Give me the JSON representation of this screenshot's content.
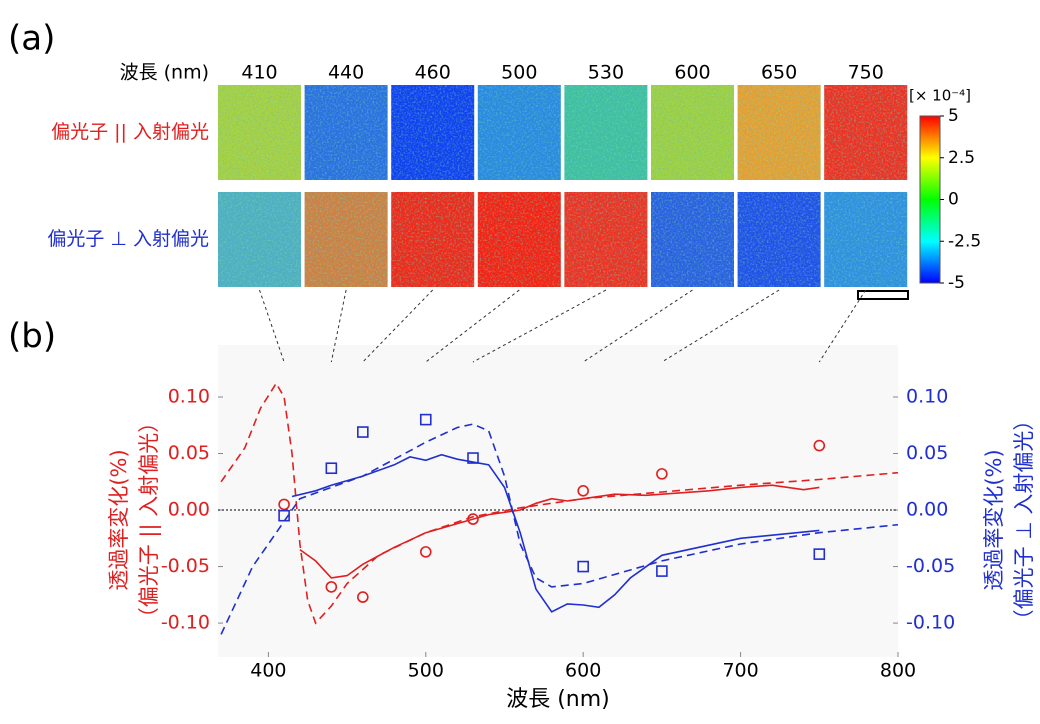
{
  "panel_labels": [
    "(a)",
    "(b)"
  ],
  "panel_a": {
    "wavelength_label": "波長 (nm)",
    "wavelengths": [
      410,
      440,
      460,
      500,
      530,
      600,
      650,
      750
    ],
    "rows": [
      {
        "label": "偏光子 || 入射偏光",
        "color": "#e02020",
        "tile_colors": [
          "#a8d040",
          "#2a70e0",
          "#1040f0",
          "#2a8ae0",
          "#40c0a0",
          "#a0d040",
          "#e8a030",
          "#f03020"
        ]
      },
      {
        "label": "偏光子 ⊥ 入射偏光",
        "color": "#2030d0",
        "tile_colors": [
          "#50b0c0",
          "#d08040",
          "#f02818",
          "#f82010",
          "#f03020",
          "#2a60e0",
          "#2050e8",
          "#3090e0"
        ]
      }
    ],
    "colorbar": {
      "unit": "[× 10⁻⁴]",
      "lim": [
        -5,
        5
      ],
      "ticks": [
        5,
        2.5,
        0,
        -2.5,
        -5
      ],
      "colormap": [
        "#0000ff",
        "#00ffff",
        "#00ff00",
        "#ffff00",
        "#ff0000"
      ]
    }
  },
  "chart_data": {
    "type": "line",
    "xlabel": "波長 (nm)",
    "ylabel": [
      "透過率変化(%)",
      "（偏光子 || 入射偏光）"
    ],
    "y2label": [
      "透過率変化(%)",
      "（偏光子 ⊥ 入射偏光）"
    ],
    "ylabel_color": "#e02020",
    "y2label_color": "#2030d0",
    "xlim": [
      368,
      800
    ],
    "xticks": [
      400,
      500,
      600,
      700,
      800
    ],
    "ylim": [
      -0.13,
      0.146
    ],
    "yticks": [
      {
        "value": 0.1,
        "label": "0.10"
      },
      {
        "value": 0.05,
        "label": "0.05"
      },
      {
        "value": 0,
        "label": "0.00"
      },
      {
        "value": -0.05,
        "label": "-0.05"
      },
      {
        "value": -0.1,
        "label": "-0.10"
      }
    ],
    "y2lim": [
      -0.13,
      0.146
    ],
    "y2ticks": [
      {
        "value": 0.1,
        "label": "0.10"
      },
      {
        "value": 0.05,
        "label": "0.05"
      },
      {
        "value": 0,
        "label": "0.00"
      },
      {
        "value": -0.05,
        "label": "-0.05"
      },
      {
        "value": -0.1,
        "label": "-0.10"
      }
    ],
    "reference_line": 0,
    "series": [
      {
        "color": "#e02020",
        "line_style": "dashed",
        "axis": "y",
        "x": [
          370,
          385,
          395,
          405,
          410,
          415,
          420,
          425,
          430,
          440,
          450,
          470,
          500,
          530,
          560,
          600,
          650,
          700,
          750,
          800
        ],
        "values": [
          0.025,
          0.055,
          0.09,
          0.112,
          0.1,
          0.05,
          -0.03,
          -0.08,
          -0.1,
          -0.085,
          -0.065,
          -0.04,
          -0.02,
          -0.006,
          0.002,
          0.01,
          0.016,
          0.022,
          0.027,
          0.033
        ]
      },
      {
        "color": "#e02020",
        "line_style": "solid",
        "axis": "y",
        "x": [
          420,
          430,
          440,
          450,
          460,
          480,
          500,
          520,
          540,
          560,
          570,
          580,
          590,
          600,
          620,
          640,
          660,
          680,
          700,
          720,
          740,
          750
        ],
        "values": [
          -0.035,
          -0.045,
          -0.06,
          -0.058,
          -0.048,
          -0.033,
          -0.02,
          -0.012,
          -0.004,
          0.0,
          0.006,
          0.01,
          0.008,
          0.01,
          0.014,
          0.013,
          0.015,
          0.017,
          0.02,
          0.022,
          0.018,
          0.02
        ]
      },
      {
        "color": "#e02020",
        "marker": "circle",
        "axis": "y",
        "x": [
          410,
          440,
          460,
          500,
          530,
          600,
          650,
          750
        ],
        "values": [
          0.005,
          -0.068,
          -0.077,
          -0.037,
          -0.008,
          0.017,
          0.032,
          0.057
        ]
      },
      {
        "color": "#2030d0",
        "line_style": "dashed",
        "axis": "y2",
        "x": [
          370,
          380,
          390,
          400,
          410,
          420,
          440,
          460,
          480,
          500,
          520,
          530,
          540,
          550,
          560,
          570,
          580,
          600,
          650,
          700,
          750,
          800
        ],
        "values": [
          -0.11,
          -0.08,
          -0.05,
          -0.03,
          -0.01,
          0.01,
          0.02,
          0.03,
          0.045,
          0.06,
          0.073,
          0.076,
          0.07,
          0.03,
          -0.03,
          -0.06,
          -0.068,
          -0.065,
          -0.045,
          -0.03,
          -0.02,
          -0.013
        ]
      },
      {
        "color": "#2030d0",
        "line_style": "solid",
        "axis": "y2",
        "x": [
          415,
          430,
          440,
          460,
          480,
          490,
          500,
          510,
          520,
          540,
          550,
          560,
          570,
          580,
          590,
          600,
          610,
          620,
          630,
          650,
          700,
          750
        ],
        "values": [
          0.012,
          0.017,
          0.022,
          0.03,
          0.04,
          0.047,
          0.044,
          0.049,
          0.045,
          0.04,
          0.02,
          -0.02,
          -0.07,
          -0.09,
          -0.083,
          -0.084,
          -0.086,
          -0.075,
          -0.06,
          -0.04,
          -0.025,
          -0.018
        ]
      },
      {
        "color": "#2030d0",
        "marker": "square",
        "axis": "y2",
        "x": [
          410,
          440,
          460,
          500,
          530,
          600,
          650,
          750
        ],
        "values": [
          -0.005,
          0.037,
          0.069,
          0.08,
          0.046,
          -0.05,
          -0.054,
          -0.039
        ]
      }
    ]
  }
}
